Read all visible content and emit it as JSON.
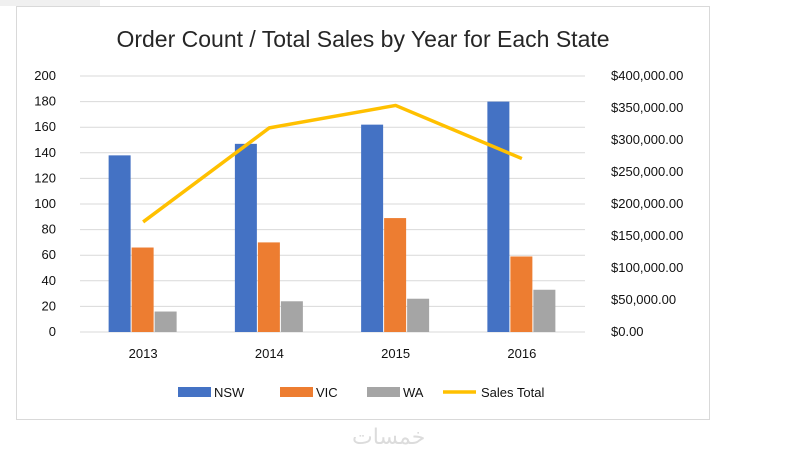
{
  "chart_data": {
    "type": "bar",
    "title": "Order Count / Total Sales by Year for Each State",
    "categories": [
      "2013",
      "2014",
      "2015",
      "2016"
    ],
    "series": [
      {
        "name": "NSW",
        "type": "bar",
        "axis": "left",
        "color": "#4472C4",
        "values": [
          138,
          147,
          162,
          180
        ]
      },
      {
        "name": "VIC",
        "type": "bar",
        "axis": "left",
        "color": "#ED7D31",
        "values": [
          66,
          70,
          89,
          59
        ]
      },
      {
        "name": "WA",
        "type": "bar",
        "axis": "left",
        "color": "#A5A5A5",
        "values": [
          16,
          24,
          26,
          33
        ]
      },
      {
        "name": "Sales Total",
        "type": "line",
        "axis": "right",
        "color": "#FFC000",
        "values": [
          172000,
          319000,
          354000,
          271000
        ]
      }
    ],
    "y_left": {
      "min": 0,
      "max": 200,
      "ticks": [
        "0",
        "20",
        "40",
        "60",
        "80",
        "100",
        "120",
        "140",
        "160",
        "180",
        "200"
      ]
    },
    "y_right": {
      "min": 0,
      "max": 400000,
      "ticks": [
        "$0.00",
        "$50,000.00",
        "$100,000.00",
        "$150,000.00",
        "$200,000.00",
        "$250,000.00",
        "$300,000.00",
        "$350,000.00",
        "$400,000.00"
      ]
    },
    "grid": true,
    "legend_position": "bottom"
  },
  "watermark": "خمسات"
}
